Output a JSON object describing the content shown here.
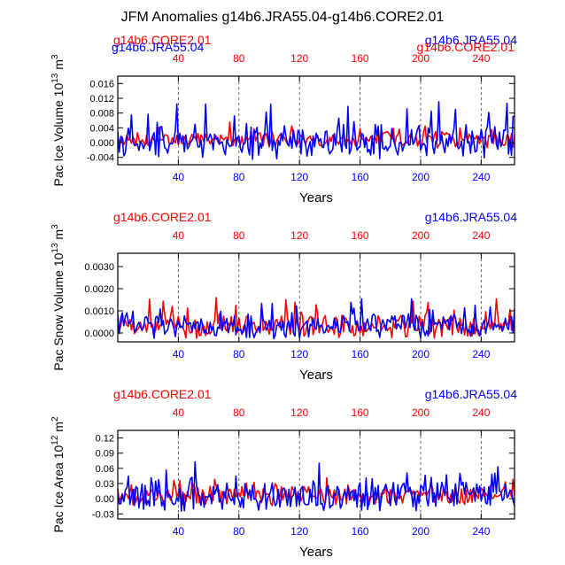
{
  "title": "JFM Anomalies g14b6.JRA55.04-g14b6.CORE2.01",
  "colors": {
    "core": "#ff0000",
    "jra": "#0000ff",
    "axis": "#000000",
    "grid": "#555555"
  },
  "chart_data": [
    {
      "type": "line",
      "title": "Pac Ice Volume",
      "ylabel": "Pac Ice Volume 10^13 m^3",
      "ylabel_base": "Pac Ice Volume 10",
      "ylabel_exp": "13",
      "ylabel_unit": "m",
      "ylabel_unit_exp": "3",
      "xlabel": "Years",
      "xlim": [
        0,
        262
      ],
      "ylim": [
        -0.006,
        0.018
      ],
      "yticks": [
        -0.004,
        0.0,
        0.004,
        0.008,
        0.012,
        0.016
      ],
      "ytick_labels": [
        "-0.004",
        "0.000",
        "0.004",
        "0.008",
        "0.012",
        "0.016"
      ],
      "xticks": [
        40,
        80,
        120,
        160,
        200,
        240
      ],
      "xtick_labels": [
        "40",
        "80",
        "120",
        "160",
        "200",
        "240"
      ],
      "vlines": [
        40,
        80,
        120,
        160,
        200,
        240
      ],
      "legend_left": "g14b6.CORE2.01",
      "legend_right": "g14b6.JRA55.04",
      "legend_left_overlap": "g14b6.JRA55.04",
      "legend_right_overlap": "g14b6.CORE2.01",
      "series": [
        {
          "name": "g14b6.CORE2.01",
          "color": "red",
          "amp": 0.0022,
          "base": 0.0006,
          "seed": 11
        },
        {
          "name": "g14b6.JRA55.04",
          "color": "blue",
          "amp": 0.0048,
          "base": 0.0002,
          "seed": 23
        }
      ]
    },
    {
      "type": "line",
      "title": "Pac Snow Volume",
      "ylabel": "Pac Snow Volume 10^13 m^3",
      "ylabel_base": "Pac Snow Volume 10",
      "ylabel_exp": "13",
      "ylabel_unit": "m",
      "ylabel_unit_exp": "3",
      "xlabel": "Years",
      "xlim": [
        0,
        262
      ],
      "ylim": [
        -0.0004,
        0.0036
      ],
      "yticks": [
        0.0,
        0.001,
        0.002,
        0.003
      ],
      "ytick_labels": [
        "0.0000",
        "0.0010",
        "0.0020",
        "0.0030"
      ],
      "xticks": [
        40,
        80,
        120,
        160,
        200,
        240
      ],
      "xtick_labels": [
        "40",
        "80",
        "120",
        "160",
        "200",
        "240"
      ],
      "vlines": [
        40,
        80,
        120,
        160,
        200,
        240
      ],
      "legend_left": "g14b6.CORE2.01",
      "legend_right": "g14b6.JRA55.04",
      "series": [
        {
          "name": "g14b6.CORE2.01",
          "color": "red",
          "amp": 0.00055,
          "base": 0.0003,
          "seed": 37
        },
        {
          "name": "g14b6.JRA55.04",
          "color": "blue",
          "amp": 0.00055,
          "base": 0.00028,
          "seed": 41
        }
      ]
    },
    {
      "type": "line",
      "title": "Pac Ice Area",
      "ylabel": "Pac Ice Area 10^12 m^2",
      "ylabel_base": "Pac Ice Area 10",
      "ylabel_exp": "12",
      "ylabel_unit": "m",
      "ylabel_unit_exp": "2",
      "xlabel": "Years",
      "xlim": [
        0,
        262
      ],
      "ylim": [
        -0.04,
        0.135
      ],
      "yticks": [
        -0.03,
        0.0,
        0.03,
        0.06,
        0.09,
        0.12
      ],
      "ytick_labels": [
        "-0.03",
        "0.00",
        "0.03",
        "0.06",
        "0.09",
        "0.12"
      ],
      "xticks": [
        40,
        80,
        120,
        160,
        200,
        240
      ],
      "xtick_labels": [
        "40",
        "80",
        "120",
        "160",
        "200",
        "240"
      ],
      "vlines": [
        40,
        80,
        120,
        160,
        200,
        240
      ],
      "legend_left": "g14b6.CORE2.01",
      "legend_right": "g14b6.JRA55.04",
      "series": [
        {
          "name": "g14b6.CORE2.01",
          "color": "red",
          "amp": 0.02,
          "base": 0.006,
          "seed": 53
        },
        {
          "name": "g14b6.JRA55.04",
          "color": "blue",
          "amp": 0.03,
          "base": 0.004,
          "seed": 67
        }
      ]
    }
  ]
}
